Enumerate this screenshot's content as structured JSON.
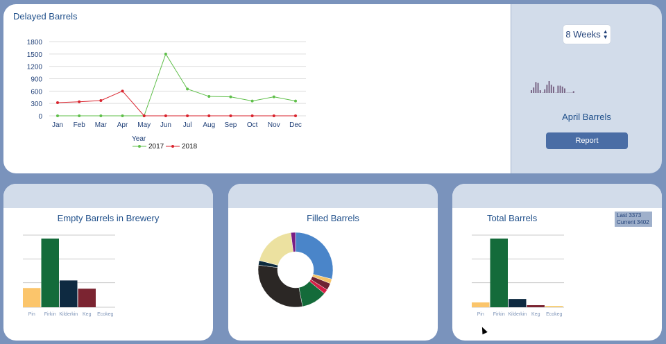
{
  "delayed": {
    "title": "Delayed Barrels",
    "legend_title": "Year"
  },
  "side": {
    "weeks_label": "8 Weeks",
    "caption": "April Barrels",
    "report_label": "Report",
    "sparkline": [
      3,
      6,
      12,
      11,
      3,
      0,
      4,
      9,
      13,
      9,
      7,
      0,
      8,
      8,
      7,
      5,
      0,
      0,
      0,
      2
    ]
  },
  "empty": {
    "title": "Empty Barrels in Brewery"
  },
  "filled": {
    "title": "Filled Barrels"
  },
  "total": {
    "title": "Total Barrels",
    "tooltip": {
      "last": "Last 3373",
      "current": "Current 3402"
    }
  },
  "colors": {
    "series_2017": "#5fbf4a",
    "series_2018": "#d9232d",
    "pin": "#fbc56b",
    "firkin": "#146b3a",
    "kilderkin": "#0e2a41",
    "keg": "#7b2431",
    "ecokeg": "#f7d07a"
  },
  "chart_data": [
    {
      "type": "line",
      "title": "Delayed Barrels",
      "x": [
        "Jan",
        "Feb",
        "Mar",
        "Apr",
        "May",
        "Jun",
        "Jul",
        "Aug",
        "Sep",
        "Oct",
        "Nov",
        "Dec"
      ],
      "yticks": [
        0,
        300,
        600,
        900,
        1200,
        1500,
        1800
      ],
      "ylim": [
        0,
        1800
      ],
      "grid": true,
      "legend": "bottom",
      "series": [
        {
          "name": "2017",
          "values": [
            0,
            0,
            0,
            0,
            0,
            1500,
            650,
            470,
            460,
            360,
            460,
            360
          ]
        },
        {
          "name": "2018",
          "values": [
            320,
            340,
            370,
            600,
            0,
            0,
            0,
            0,
            0,
            0,
            0,
            0
          ]
        }
      ]
    },
    {
      "type": "bar",
      "title": "Empty Barrels in Brewery",
      "categories": [
        "Pin",
        "Firkin",
        "Kilderkin",
        "Keg",
        "Ecokeg"
      ],
      "values": [
        28,
        100,
        39,
        27,
        0
      ],
      "ylim": [
        0,
        105
      ],
      "grid": true
    },
    {
      "type": "pie",
      "title": "Filled Barrels",
      "slices": [
        {
          "value": 29,
          "color": "#4a85c9"
        },
        {
          "value": 2,
          "color": "#f4c46a"
        },
        {
          "value": 3,
          "color": "#6e2433"
        },
        {
          "value": 2,
          "color": "#d52046"
        },
        {
          "value": 11,
          "color": "#146b3a"
        },
        {
          "value": 30,
          "color": "#2b2725"
        },
        {
          "value": 2,
          "color": "#0c2a3c"
        },
        {
          "value": 19,
          "color": "#ece1a0"
        },
        {
          "value": 2,
          "color": "#7a1e84"
        }
      ]
    },
    {
      "type": "bar",
      "title": "Total Barrels",
      "categories": [
        "Pin",
        "Firkin",
        "Kilderkin",
        "Keg",
        "Ecokeg"
      ],
      "values": [
        7,
        100,
        12,
        3,
        2
      ],
      "ylim": [
        0,
        105
      ],
      "grid": true
    }
  ]
}
